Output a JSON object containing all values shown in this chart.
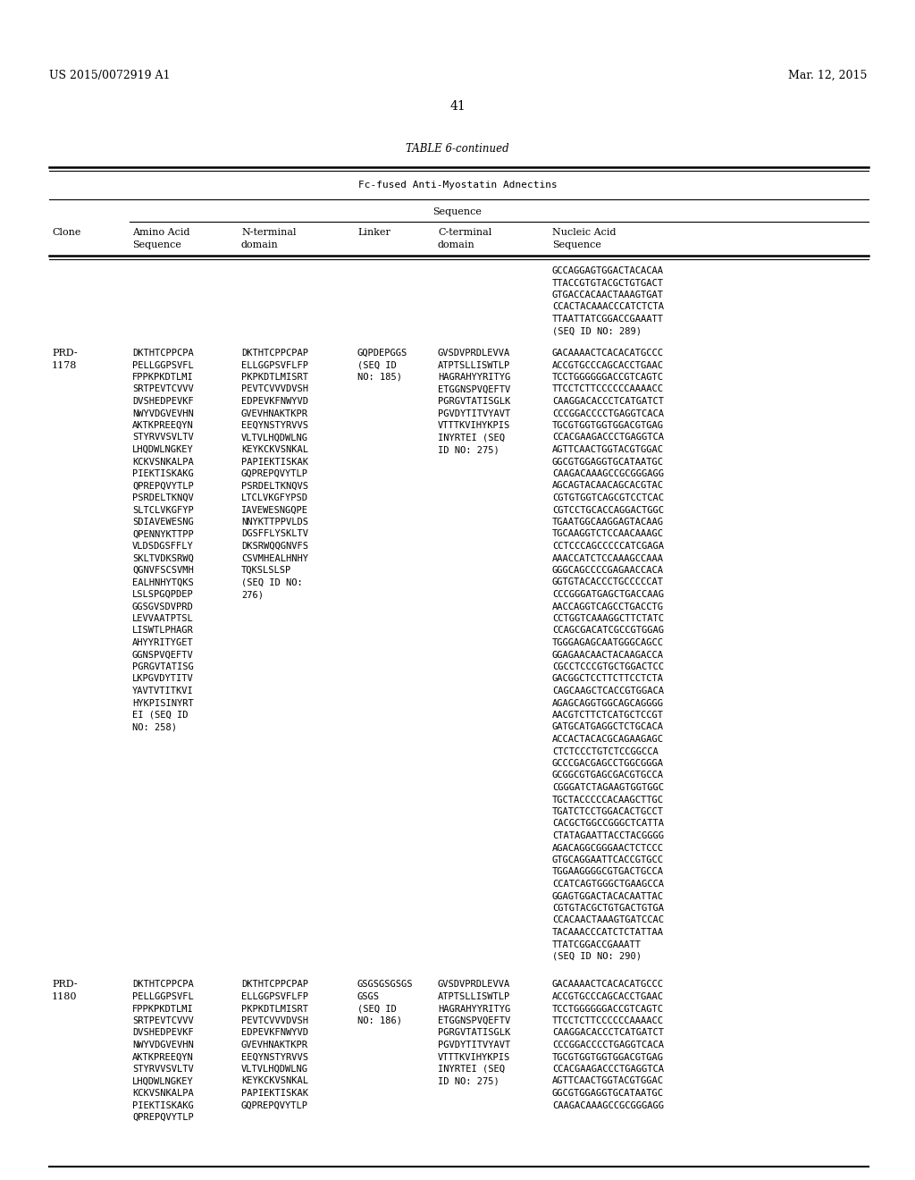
{
  "patent_number": "US 2015/0072919 A1",
  "date": "Mar. 12, 2015",
  "page_number": "41",
  "table_title": "TABLE 6-continued",
  "table_subtitle": "Fc-fused Anti-Myostatin Adnectins",
  "sequence_label": "Sequence",
  "bg_color": "#ffffff",
  "text_color": "#000000",
  "row0_nucleic": "GCCAGGAGTGGACTACACAA\nTTACCGTGTACGCTGTGACT\nGTGACCACAACTAAAGTGAT\nCCACTACAAACCCATCTCTA\nTTAATTATCGGACCGAAATT\n(SEQ ID NO: 289)",
  "row1_clone": "PRD-\n1178",
  "row1_aa": "DKTHTCPPCPA\nPELLGGPSVFL\nFPPKPKDTLMI\nSRTPEVTCVVV\nDVSHEDPEVKF\nNWYVDGVEVHN\nAKTKPREEQYN\nSTYRVVSVLTV\nLHQDWLNGKEY\nKCKVSNKALPA\nPIEKTISKAKG\nQPREPQVYTLP\nPSRDELTKNQV\nSLTCLVKGFYP\nSDIAVEWESNG\nQPENNYKTTPP\nVLDSDGSFFLY\nSKLTVDKSRWQ\nQGNVFSCSVMH\nEALHNHYTQKS\nLSLSPGQPDEP\nGGSGVSDVPRD\nLEVVAATPTSL\nLISWTLPHAGR\nAHYYRITYGET\nGGNSPVQEFTV\nPGRGVTATISG\nLKPGVDYTITV\nYAVTVTITKVI\nHYKPISINYRT\nEI (SEQ ID\nNO: 258)",
  "row1_nt": "DKTHTCPPCPAP\nELLGGPSVFLFP\nPKPKDTLMISRT\nPEVTCVVVDVSH\nEDPEVKFNWYVD\nGVEVHNAKTKPR\nEEQYNSTYRVVS\nVLTVLHQDWLNG\nKEYKCKVSNKAL\nPAPIEKTISKAK\nGQPREPQVYTLP\nPSRDELTKNQVS\nLTCLVKGFYPSD\nIAVEWESNGQPE\nNNYKTTPPVLDS\nDGSFFLYSKLTV\nDKSRWQQGNVFS\nCSVMHEALHNHY\nTQKSLSLSP\n(SEQ ID NO:\n276)",
  "row1_lnk": "GQPDEPGGS\n(SEQ ID\nNO: 185)",
  "row1_ct": "GVSDVPRDLEVVA\nATPTSLLISWTLP\nHAGRAHYYRITYG\nETGGNSPVQEFTV\nPGRGVTATISGLK\nPGVDYTITVYAVT\nVTTTKVIHYKPIS\nINYRTEI (SEQ\nID NO: 275)",
  "row1_na": "GACAAAACTCACACATGCCC\nACCGTGCCCAGCACCTGAAC\nTCCTGGGGGGACCGTCAGTC\nTTCCTCTTCCCCCCAAAACC\nCAAGGACACCCTCATGATCT\nCCCGGACCCCTGAGGTCACA\nTGCGTGGTGGTGGACGTGAG\nCCACGAAGACCCTGAGGTCA\nAGTTCAACTGGTACGTGGAC\nGGCGTGGAGGTGCATAATGC\nCAAGACAAAGCCGCGGGAGG\nAGCAGTACAACАGCACGTAC\nCGTGTGGTCAGCGTCCTCAC\nCGTCCTGCACCAGGACTGGC\nTGAATGGCAAGGAGTACAAG\nTGCAAGGTCTCCAACАAAGC\nCCTCCCAGCCCCCATCGAGA\nAAACCATCTCCАAAGCCAAA\nGGGCAGCCCCGAGAACCACA\nGGTGTACACCCTGCCCCCAT\nCCCGGGATGAGCTGACCAAG\nAACCAGGTCAGCCTGACCTG\nCCTGGTCАAAGGCTTCTATC\nCCAGCGACATCGCCGTGGAG\nTGGGAGAGCAATGGGCAGCC\nGGAGAACAACTACAAGACCA\nCGCCTCCCGTGCTGGACTCC\nGACGGCTCCTTCTTCCTCTA\nCAGCAAGCTCACCGTGGACA\nAGAGCAGGTGGCAGCAGGGG\nAACGTCTTCTCATGCTCCGT\nGATGCATGAGGCTCTGCACA\nACCACTACACGCAGAAGAGC\nCTCTCCCTGTCTCCGGCCA\nGCCCGACGAGCCTGGCGGGA\nGCGGCGTGAGCGACGTGCCA\nCGGGATCTAGAAGTGGTGGC\nTGCTACCCCCACAАGCTTGC\nTGATCTCCTGGACACTGCCT\nCACGCTGGCCGGGCTCATTA\nCTATAGAATTACCTACGGGG\nAGACAGGCGGGAACTCTCCC\nGTGCAGGAATTCACCGTGCC\nTGGAAGGGGCGTGACTGCCA\nCCATCAGTGGGCTGAAGCCA\nGGAGTGGACTACACAAТТAC\nCGTGTACGCTGTGACTGTGA\nCCACAACTAAАGTGATCCAC\nTACAАACCCАTCTCTATТAA\nTTATCGGACCGAAATT\n(SEQ ID NO: 290)",
  "row2_clone": "PRD-\n1180",
  "row2_aa": "DKTHTCPPCPA\nPELLGGPSVFL\nFPPKPKDTLMI\nSRTPEVTCVVV\nDVSHEDPEVKF\nNWYVDGVEVHN\nAKTKPREEQYN\nSTYRVVSVLTV\nLHQDWLNGKEY\nKCKVSNKALPA\nPIEKTISKAKG\nQPREPQVYTLP",
  "row2_nt": "DKTHTCPPCPAP\nELLGGPSVFLFP\nPKPKDTLMISRT\nPEVTCVVVDVSH\nEDPEVKFNWYVD\nGVEVHNAKTKPR\nEEQYNSTYRVVS\nVLTVLHQDWLNG\nKEYKCKVSNKAL\nPAPIEKTISKAK\nGQPREPQVYTLP",
  "row2_lnk": "GSGSGSGSGS\nGSGS\n(SEQ ID\nNO: 186)",
  "row2_ct": "GVSDVPRDLEVVA\nATPTSLLISWTLP\nHAGRAHYYRITYG\nETGGNSPVQEFTV\nPGRGVTATISGLK\nPGVDYTITVYAVT\nVTTTKVIHYKPIS\nINYRTEI (SEQ\nID NO: 275)",
  "row2_na": "GACAAAACTCACACATGCCC\nACCGTGCCCAGCACCTGAAC\nTCCTGGGGGGACCGTCAGTC\nTTCCTCTTCCCCCCAAAACC\nCAAGGACACCCTCATGATCT\nCCCGGACCCCTGAGGTCACA\nTGCGTGGTGGTGGACGTGAG\nCCACGAAGACCCTGAGGTCA\nAGTTCAACTGGTACGTGGAC\nGGCGTGGAGGTGCATAATGC\nCAAGACAAAGCCGCGGGAGG"
}
